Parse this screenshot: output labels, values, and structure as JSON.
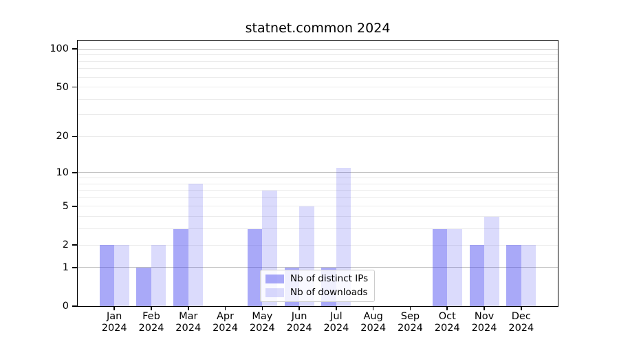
{
  "chart_data": {
    "type": "bar",
    "title": "statnet.common 2024",
    "y_scale": "log1p",
    "xlabel": "",
    "ylabel": "",
    "year": "2024",
    "months": [
      "Jan",
      "Feb",
      "Mar",
      "Apr",
      "May",
      "Jun",
      "Jul",
      "Aug",
      "Sep",
      "Oct",
      "Nov",
      "Dec"
    ],
    "categories": [
      "Jan 2024",
      "Feb 2024",
      "Mar 2024",
      "Apr 2024",
      "May 2024",
      "Jun 2024",
      "Jul 2024",
      "Aug 2024",
      "Sep 2024",
      "Oct 2024",
      "Nov 2024",
      "Dec 2024"
    ],
    "series": [
      {
        "name": "Nb of distinct IPs",
        "color": "rgba(64,64,240,0.45)",
        "color_on_white": "#a9a9f7",
        "values": [
          2,
          1,
          3,
          0,
          3,
          1,
          1,
          0,
          0,
          3,
          2,
          2
        ]
      },
      {
        "name": "Nb of downloads",
        "color": "rgba(64,64,240,0.19)",
        "color_on_white": "#dcdcfc",
        "values": [
          2,
          2,
          8,
          0,
          7,
          5,
          11,
          0,
          0,
          3,
          4,
          2
        ]
      }
    ],
    "y_ticks": [
      0,
      1,
      2,
      5,
      10,
      20,
      50,
      100
    ],
    "y_axis_top_value": 116,
    "grid": {
      "major_at": [
        1,
        10,
        100
      ],
      "minor_at": [
        2,
        3,
        4,
        5,
        6,
        7,
        8,
        9,
        20,
        30,
        40,
        50,
        60,
        70,
        80,
        90
      ],
      "major_color": "#bdbdbd",
      "minor_color": "#ebebeb"
    },
    "legend": {
      "position": "lower center",
      "entries": [
        "Nb of distinct IPs",
        "Nb of downloads"
      ]
    }
  }
}
